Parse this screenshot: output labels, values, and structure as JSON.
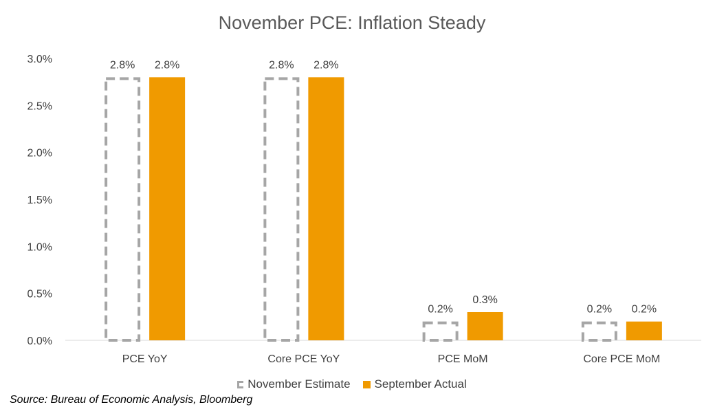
{
  "chart_data": {
    "type": "bar",
    "title": "November PCE: Inflation Steady",
    "categories": [
      "PCE YoY",
      "Core PCE YoY",
      "PCE MoM",
      "Core PCE MoM"
    ],
    "series": [
      {
        "name": "November Estimate",
        "values": [
          2.8,
          2.8,
          0.2,
          0.2
        ],
        "labels": [
          "2.8%",
          "2.8%",
          "0.2%",
          "0.2%"
        ],
        "style": "dashed-outline",
        "color": "#a6a6a6"
      },
      {
        "name": "September Actual",
        "values": [
          2.8,
          2.8,
          0.3,
          0.2
        ],
        "labels": [
          "2.8%",
          "2.8%",
          "0.3%",
          "0.2%"
        ],
        "style": "solid",
        "color": "#f09a00"
      }
    ],
    "y_ticks": [
      "0.0%",
      "0.5%",
      "1.0%",
      "1.5%",
      "2.0%",
      "2.5%",
      "3.0%"
    ],
    "ylim": [
      0,
      3.0
    ],
    "grid": false,
    "legend_position": "bottom"
  },
  "source": "Source: Bureau of Economic Analysis, Bloomberg"
}
